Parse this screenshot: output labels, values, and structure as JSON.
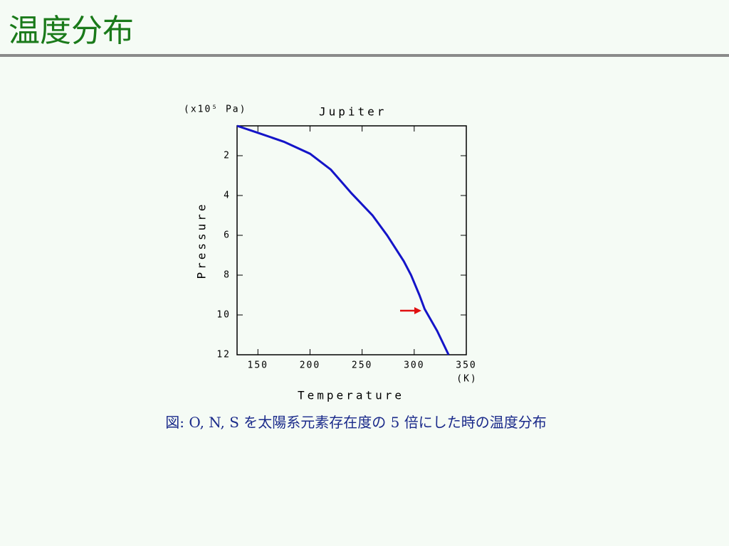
{
  "header": {
    "title": "温度分布"
  },
  "caption": "図: O, N, S を太陽系元素存在度の 5 倍にした時の温度分布",
  "chart_data": {
    "type": "line",
    "title": "Jupiter",
    "x_label": "Temperature",
    "x_unit": "(K)",
    "y_label": "Pressure",
    "y_unit": "(x10⁵ Pa)",
    "x": [
      130,
      150,
      175,
      200,
      220,
      240,
      260,
      274,
      290,
      297,
      305,
      310,
      322,
      333
    ],
    "values": [
      0.5,
      0.85,
      1.3,
      1.9,
      2.7,
      3.9,
      5.0,
      6.0,
      7.3,
      8.0,
      9.0,
      9.7,
      10.8,
      12
    ],
    "color": "#1414c8",
    "xlim": [
      130,
      350
    ],
    "xticks": [
      150,
      200,
      250,
      300,
      350
    ],
    "ylim": [
      0.5,
      12
    ],
    "yticks": [
      2,
      4,
      6,
      8,
      10,
      12
    ],
    "y_inverted": true
  }
}
